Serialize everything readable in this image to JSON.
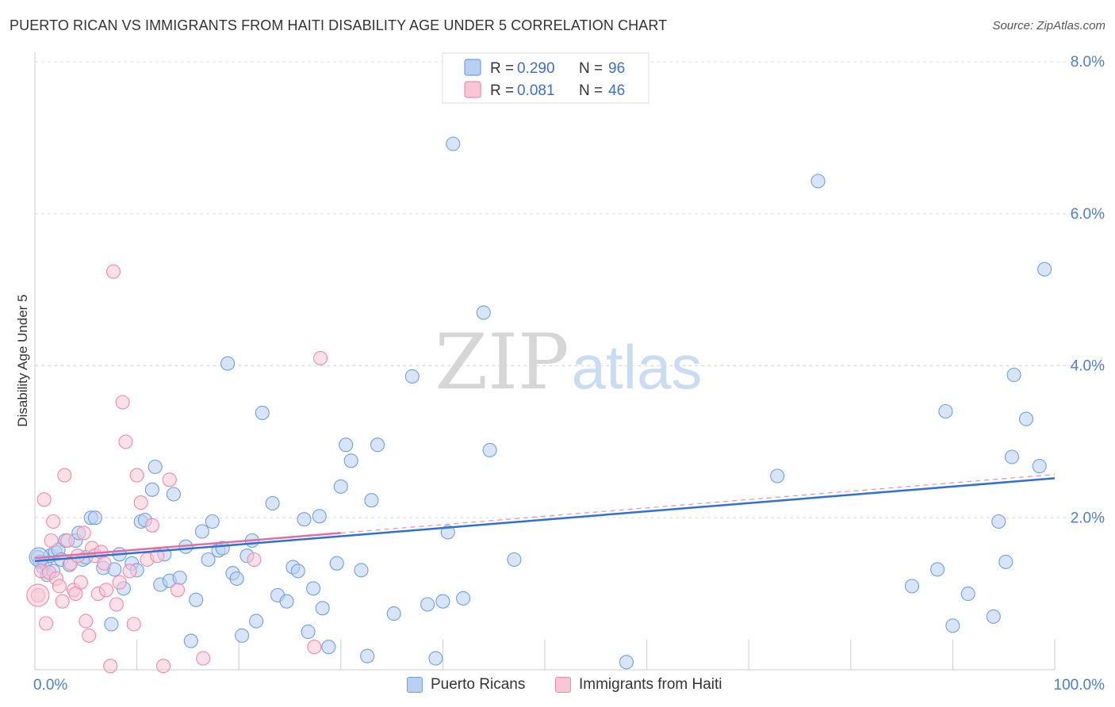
{
  "header": {
    "title": "PUERTO RICAN VS IMMIGRANTS FROM HAITI DISABILITY AGE UNDER 5 CORRELATION CHART",
    "source": "Source: ZipAtlas.com"
  },
  "watermark": {
    "zip": "ZIP",
    "atlas": "atlas"
  },
  "chart_data": {
    "type": "scatter",
    "title": "PUERTO RICAN VS IMMIGRANTS FROM HAITI DISABILITY AGE UNDER 5 CORRELATION CHART",
    "xlabel": "",
    "ylabel": "Disability Age Under 5",
    "xlim": [
      0,
      100
    ],
    "ylim": [
      0,
      8.0
    ],
    "x_tick_labels": {
      "left": "0.0%",
      "right": "100.0%"
    },
    "y_ticks": [
      {
        "value": 2.0,
        "label": "2.0%"
      },
      {
        "value": 4.0,
        "label": "4.0%"
      },
      {
        "value": 6.0,
        "label": "6.0%"
      },
      {
        "value": 8.0,
        "label": "8.0%"
      }
    ],
    "legend_stats": [
      {
        "r_label": "R =",
        "r": "0.290",
        "n_label": "N =",
        "n": "96",
        "color": "#6fa0e0"
      },
      {
        "r_label": "R =",
        "r": "0.081",
        "n_label": "N =",
        "n": "46",
        "color": "#f08aaa"
      }
    ],
    "series": [
      {
        "name": "Puerto Ricans",
        "color": "#6fa0e0",
        "fill": "#b8d0f2",
        "trend": {
          "x0": 0,
          "y0": 1.43,
          "x1": 100,
          "y1": 2.52
        },
        "points": [
          [
            0.3,
            1.48
          ],
          [
            0.5,
            1.42
          ],
          [
            0.8,
            1.35
          ],
          [
            1.0,
            1.4
          ],
          [
            1.2,
            1.25
          ],
          [
            1.5,
            1.5
          ],
          [
            1.8,
            1.3
          ],
          [
            2.0,
            1.55
          ],
          [
            2.3,
            1.58
          ],
          [
            2.6,
            1.45
          ],
          [
            3.0,
            1.7
          ],
          [
            3.4,
            1.38
          ],
          [
            4.0,
            1.7
          ],
          [
            4.3,
            1.8
          ],
          [
            4.7,
            1.45
          ],
          [
            5.0,
            1.48
          ],
          [
            5.5,
            2.0
          ],
          [
            5.9,
            2.0
          ],
          [
            6.7,
            1.34
          ],
          [
            7.5,
            0.6
          ],
          [
            7.8,
            1.32
          ],
          [
            8.3,
            1.52
          ],
          [
            8.7,
            1.07
          ],
          [
            9.5,
            1.4
          ],
          [
            10.0,
            1.31
          ],
          [
            10.4,
            1.95
          ],
          [
            10.8,
            1.97
          ],
          [
            11.5,
            2.37
          ],
          [
            11.8,
            2.67
          ],
          [
            12.3,
            1.12
          ],
          [
            12.7,
            1.52
          ],
          [
            13.2,
            1.17
          ],
          [
            13.6,
            2.31
          ],
          [
            14.2,
            1.21
          ],
          [
            14.8,
            1.62
          ],
          [
            15.3,
            0.38
          ],
          [
            15.8,
            0.92
          ],
          [
            16.4,
            1.82
          ],
          [
            17.0,
            1.45
          ],
          [
            17.4,
            1.95
          ],
          [
            18.0,
            1.57
          ],
          [
            18.4,
            1.6
          ],
          [
            18.9,
            4.03
          ],
          [
            19.4,
            1.27
          ],
          [
            19.8,
            1.2
          ],
          [
            20.3,
            0.45
          ],
          [
            20.8,
            1.5
          ],
          [
            21.3,
            1.7
          ],
          [
            21.7,
            0.64
          ],
          [
            22.3,
            3.38
          ],
          [
            23.3,
            2.19
          ],
          [
            23.8,
            0.98
          ],
          [
            24.7,
            0.9
          ],
          [
            25.3,
            1.35
          ],
          [
            25.8,
            1.3
          ],
          [
            26.4,
            1.98
          ],
          [
            26.8,
            0.5
          ],
          [
            27.3,
            1.07
          ],
          [
            27.9,
            2.02
          ],
          [
            28.2,
            0.81
          ],
          [
            28.8,
            0.3
          ],
          [
            29.6,
            1.4
          ],
          [
            30.0,
            2.41
          ],
          [
            30.5,
            2.96
          ],
          [
            31.0,
            2.75
          ],
          [
            32.0,
            1.31
          ],
          [
            32.6,
            0.18
          ],
          [
            33.0,
            2.23
          ],
          [
            33.6,
            2.96
          ],
          [
            35.2,
            0.74
          ],
          [
            37.0,
            3.86
          ],
          [
            38.5,
            0.86
          ],
          [
            39.3,
            0.15
          ],
          [
            40.0,
            0.9
          ],
          [
            40.5,
            1.81
          ],
          [
            41.0,
            6.92
          ],
          [
            42.0,
            0.94
          ],
          [
            44.0,
            4.7
          ],
          [
            44.6,
            2.89
          ],
          [
            47.0,
            1.45
          ],
          [
            58.0,
            0.1
          ],
          [
            72.8,
            2.55
          ],
          [
            76.8,
            6.43
          ],
          [
            86.0,
            1.1
          ],
          [
            88.5,
            1.32
          ],
          [
            89.3,
            3.4
          ],
          [
            90.0,
            0.58
          ],
          [
            91.5,
            1.0
          ],
          [
            94.0,
            0.7
          ],
          [
            94.5,
            1.95
          ],
          [
            95.2,
            1.42
          ],
          [
            95.8,
            2.8
          ],
          [
            96.0,
            3.88
          ],
          [
            97.2,
            3.3
          ],
          [
            98.5,
            2.68
          ],
          [
            99.0,
            5.27
          ]
        ]
      },
      {
        "name": "Immigrants from Haiti",
        "color": "#f08aaa",
        "fill": "#f8c6d5",
        "trend": {
          "x0": 0,
          "y0": 1.47,
          "x1": 30,
          "y1": 1.8
        },
        "points": [
          [
            0.3,
            0.98
          ],
          [
            0.6,
            1.3
          ],
          [
            0.9,
            2.24
          ],
          [
            1.1,
            0.61
          ],
          [
            1.4,
            1.28
          ],
          [
            1.6,
            1.7
          ],
          [
            1.8,
            1.95
          ],
          [
            2.1,
            1.2
          ],
          [
            2.4,
            1.1
          ],
          [
            2.7,
            0.9
          ],
          [
            2.9,
            2.56
          ],
          [
            3.2,
            1.7
          ],
          [
            3.5,
            1.4
          ],
          [
            3.8,
            1.05
          ],
          [
            4.0,
            1.0
          ],
          [
            4.2,
            1.5
          ],
          [
            4.5,
            1.15
          ],
          [
            4.8,
            1.8
          ],
          [
            5.0,
            0.64
          ],
          [
            5.3,
            0.45
          ],
          [
            5.6,
            1.6
          ],
          [
            5.9,
            1.5
          ],
          [
            6.2,
            1.0
          ],
          [
            6.5,
            1.55
          ],
          [
            6.8,
            1.4
          ],
          [
            7.0,
            1.05
          ],
          [
            7.4,
            0.05
          ],
          [
            7.7,
            5.24
          ],
          [
            8.0,
            0.86
          ],
          [
            8.3,
            1.15
          ],
          [
            8.6,
            3.52
          ],
          [
            8.9,
            3.0
          ],
          [
            9.3,
            1.3
          ],
          [
            9.7,
            0.6
          ],
          [
            10.0,
            2.56
          ],
          [
            10.4,
            2.2
          ],
          [
            11.0,
            1.45
          ],
          [
            11.5,
            1.9
          ],
          [
            12.0,
            1.5
          ],
          [
            12.6,
            0.05
          ],
          [
            13.2,
            2.5
          ],
          [
            14.0,
            1.05
          ],
          [
            16.5,
            0.15
          ],
          [
            21.5,
            1.45
          ],
          [
            27.4,
            0.3
          ],
          [
            28.0,
            4.1
          ]
        ]
      }
    ]
  },
  "legend_bottom": [
    {
      "label": "Puerto Ricans",
      "color": "#b8d0f2",
      "border": "#6fa0e0"
    },
    {
      "label": "Immigrants from Haiti",
      "color": "#f8c6d5",
      "border": "#f08aaa"
    }
  ]
}
